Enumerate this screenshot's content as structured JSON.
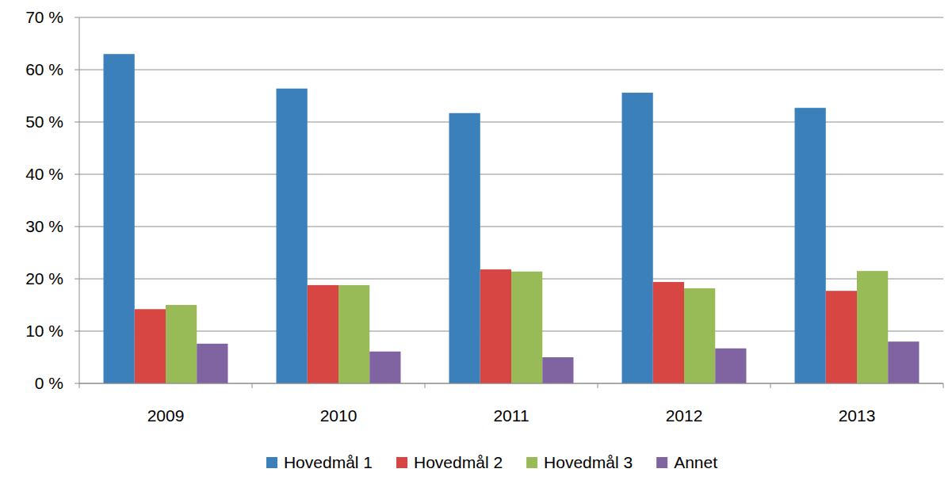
{
  "chart_data": {
    "type": "bar",
    "categories": [
      "2009",
      "2010",
      "2011",
      "2012",
      "2013"
    ],
    "series": [
      {
        "name": "Hovedmål 1",
        "color": "#3b80ba",
        "values": [
          63.0,
          56.4,
          51.7,
          55.6,
          52.7
        ]
      },
      {
        "name": "Hovedmål 2",
        "color": "#d74642",
        "values": [
          14.2,
          18.8,
          21.8,
          19.4,
          17.7
        ]
      },
      {
        "name": "Hovedmål 3",
        "color": "#98bb57",
        "values": [
          15.0,
          18.8,
          21.4,
          18.2,
          21.5
        ]
      },
      {
        "name": "Annet",
        "color": "#8064a2",
        "values": [
          7.6,
          6.1,
          5.0,
          6.7,
          8.0
        ]
      }
    ],
    "ylim": [
      0,
      70
    ],
    "yticks": [
      {
        "value": 0,
        "label": "0 %"
      },
      {
        "value": 10,
        "label": "10 %"
      },
      {
        "value": 20,
        "label": "20 %"
      },
      {
        "value": 30,
        "label": "30 %"
      },
      {
        "value": 40,
        "label": "40 %"
      },
      {
        "value": 50,
        "label": "50 %"
      },
      {
        "value": 60,
        "label": "60 %"
      },
      {
        "value": 70,
        "label": "70 %"
      }
    ],
    "grid": true,
    "legend": "bottom"
  }
}
